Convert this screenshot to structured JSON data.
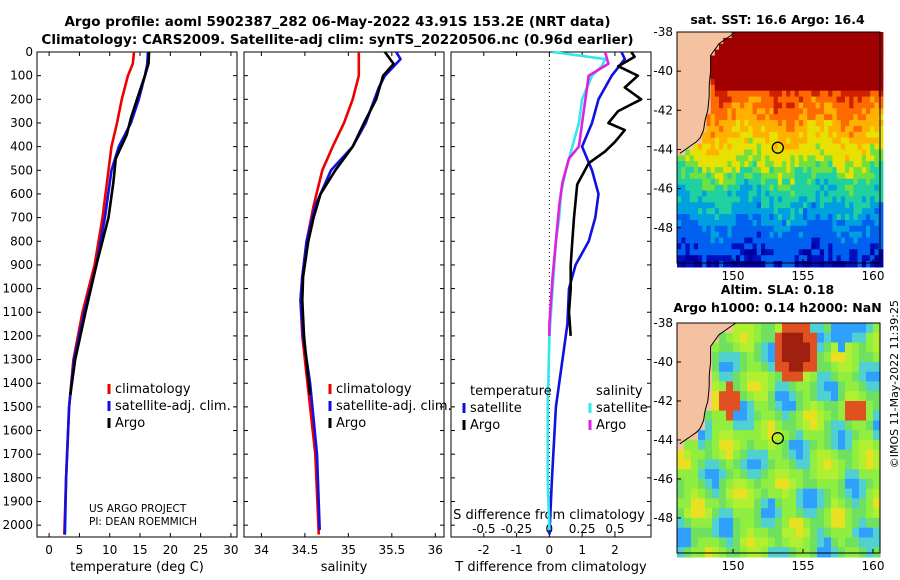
{
  "title": {
    "line1": "Argo profile: aoml 5902387_282 06-May-2022 43.91S 153.2E (NRT data)",
    "line2": "Climatology: CARS2009. Satellite-adj clim: synTS_20220506.nc (0.96d earlier)"
  },
  "colors": {
    "climatology": "#ee0000",
    "satellite": "#1010e0",
    "argo": "#000000",
    "sal_satellite": "#30e8f0",
    "sal_argo": "#e020e0"
  },
  "chart_data": [
    {
      "type": "line",
      "id": "temperature",
      "xlabel": "temperature (deg C)",
      "xlim": [
        -2,
        31
      ],
      "xticks": [
        0,
        5,
        10,
        15,
        20,
        25,
        30
      ],
      "ylim": [
        0,
        2050
      ],
      "yticks": [
        0,
        100,
        200,
        300,
        400,
        500,
        600,
        700,
        800,
        900,
        1000,
        1100,
        1200,
        1300,
        1400,
        1500,
        1600,
        1700,
        1800,
        1900,
        2000
      ],
      "legend": [
        "climatology",
        "satellite-adj. clim.",
        "Argo"
      ],
      "annotation": [
        "US ARGO PROJECT",
        "PI: DEAN ROEMMICH"
      ],
      "series": [
        {
          "name": "climatology",
          "color_key": "climatology",
          "points": [
            [
              14.0,
              0
            ],
            [
              13.8,
              50
            ],
            [
              13.0,
              100
            ],
            [
              12.0,
              200
            ],
            [
              11.2,
              300
            ],
            [
              10.3,
              400
            ],
            [
              9.8,
              500
            ],
            [
              8.8,
              700
            ],
            [
              7.5,
              900
            ],
            [
              5.5,
              1100
            ],
            [
              4.0,
              1300
            ],
            [
              3.3,
              1500
            ],
            [
              2.8,
              1800
            ],
            [
              2.5,
              2040
            ]
          ]
        },
        {
          "name": "satellite-adj. clim.",
          "color_key": "satellite",
          "points": [
            [
              16.3,
              0
            ],
            [
              16.2,
              50
            ],
            [
              15.8,
              100
            ],
            [
              14.8,
              200
            ],
            [
              13.5,
              300
            ],
            [
              11.5,
              400
            ],
            [
              10.3,
              500
            ],
            [
              9.2,
              700
            ],
            [
              7.8,
              900
            ],
            [
              5.8,
              1100
            ],
            [
              4.1,
              1300
            ],
            [
              3.3,
              1500
            ],
            [
              2.8,
              1800
            ],
            [
              2.6,
              2040
            ]
          ]
        },
        {
          "name": "Argo",
          "color_key": "argo",
          "points": [
            [
              16.5,
              0
            ],
            [
              16.4,
              50
            ],
            [
              15.8,
              100
            ],
            [
              14.5,
              200
            ],
            [
              13.5,
              280
            ],
            [
              12.8,
              350
            ],
            [
              11.0,
              450
            ],
            [
              10.6,
              550
            ],
            [
              9.8,
              700
            ],
            [
              7.8,
              900
            ],
            [
              6.0,
              1100
            ],
            [
              4.3,
              1300
            ],
            [
              3.5,
              1450
            ]
          ]
        }
      ]
    },
    {
      "type": "line",
      "id": "salinity",
      "xlabel": "salinity",
      "xlim": [
        33.8,
        36.1
      ],
      "xticks": [
        34,
        34.5,
        35,
        35.5,
        36
      ],
      "ylim": [
        0,
        2050
      ],
      "legend": [
        "climatology",
        "satellite-adj. clim.",
        "Argo"
      ],
      "series": [
        {
          "name": "climatology",
          "color_key": "climatology",
          "points": [
            [
              35.12,
              0
            ],
            [
              35.12,
              50
            ],
            [
              35.12,
              100
            ],
            [
              35.05,
              200
            ],
            [
              34.95,
              300
            ],
            [
              34.82,
              400
            ],
            [
              34.7,
              500
            ],
            [
              34.6,
              650
            ],
            [
              34.52,
              800
            ],
            [
              34.47,
              950
            ],
            [
              34.45,
              1050
            ],
            [
              34.47,
              1200
            ],
            [
              34.53,
              1400
            ],
            [
              34.62,
              1700
            ],
            [
              34.66,
              2040
            ]
          ]
        },
        {
          "name": "satellite-adj. clim.",
          "color_key": "satellite",
          "points": [
            [
              35.55,
              0
            ],
            [
              35.6,
              30
            ],
            [
              35.55,
              50
            ],
            [
              35.42,
              100
            ],
            [
              35.35,
              150
            ],
            [
              35.2,
              300
            ],
            [
              35.05,
              400
            ],
            [
              34.8,
              500
            ],
            [
              34.62,
              650
            ],
            [
              34.52,
              800
            ],
            [
              34.47,
              950
            ],
            [
              34.45,
              1050
            ],
            [
              34.48,
              1200
            ],
            [
              34.56,
              1400
            ],
            [
              34.64,
              1700
            ],
            [
              34.67,
              2020
            ]
          ]
        },
        {
          "name": "Argo",
          "color_key": "argo",
          "points": [
            [
              35.42,
              0
            ],
            [
              35.48,
              30
            ],
            [
              35.52,
              50
            ],
            [
              35.4,
              100
            ],
            [
              35.32,
              200
            ],
            [
              35.18,
              300
            ],
            [
              35.05,
              400
            ],
            [
              34.85,
              500
            ],
            [
              34.68,
              600
            ],
            [
              34.6,
              700
            ],
            [
              34.54,
              800
            ],
            [
              34.48,
              950
            ],
            [
              34.47,
              1050
            ],
            [
              34.49,
              1200
            ],
            [
              34.53,
              1350
            ],
            [
              34.56,
              1450
            ]
          ]
        }
      ]
    },
    {
      "type": "line",
      "id": "difference",
      "xlabel": "T difference from climatology",
      "top_label": "S difference from climatology",
      "xlim": [
        -3,
        3.1
      ],
      "xticks": [
        -2,
        -1,
        0,
        1,
        2
      ],
      "sticks_labels": [
        "-0.5",
        "-0.25",
        "0",
        "0.25",
        "0.5"
      ],
      "legend_left_title": "temperature",
      "legend_left": [
        "satellite",
        "Argo"
      ],
      "legend_right_title": "salinity",
      "legend_right": [
        "satellite",
        "Argo"
      ],
      "series": [
        {
          "name": "T satellite",
          "color_key": "satellite",
          "points": [
            [
              2.2,
              0
            ],
            [
              2.3,
              30
            ],
            [
              1.9,
              100
            ],
            [
              1.5,
              200
            ],
            [
              1.3,
              300
            ],
            [
              1.0,
              400
            ],
            [
              1.3,
              500
            ],
            [
              1.5,
              600
            ],
            [
              1.4,
              700
            ],
            [
              1.2,
              800
            ],
            [
              0.8,
              900
            ],
            [
              0.6,
              1000
            ],
            [
              0.55,
              1150
            ],
            [
              0.4,
              1300
            ],
            [
              0.2,
              1500
            ],
            [
              0.08,
              1800
            ],
            [
              0.0,
              2040
            ]
          ]
        },
        {
          "name": "T Argo",
          "color_key": "argo",
          "points": [
            [
              2.5,
              0
            ],
            [
              2.6,
              20
            ],
            [
              2.1,
              60
            ],
            [
              2.7,
              100
            ],
            [
              2.3,
              150
            ],
            [
              2.8,
              200
            ],
            [
              2.1,
              250
            ],
            [
              1.8,
              300
            ],
            [
              2.3,
              330
            ],
            [
              2.0,
              380
            ],
            [
              1.7,
              420
            ],
            [
              1.2,
              470
            ],
            [
              0.85,
              560
            ],
            [
              0.75,
              700
            ],
            [
              0.7,
              800
            ],
            [
              0.65,
              900
            ],
            [
              0.65,
              1000
            ],
            [
              0.6,
              1100
            ],
            [
              0.65,
              1200
            ]
          ]
        },
        {
          "name": "S satellite",
          "color_key": "sal_satellite",
          "points": [
            [
              0.1,
              0
            ],
            [
              1.7,
              30
            ],
            [
              1.6,
              60
            ],
            [
              1.3,
              100
            ],
            [
              1.0,
              200
            ],
            [
              0.9,
              300
            ],
            [
              0.7,
              400
            ],
            [
              0.5,
              500
            ],
            [
              0.35,
              600
            ],
            [
              0.3,
              700
            ],
            [
              0.2,
              800
            ],
            [
              0.15,
              900
            ],
            [
              0.1,
              1000
            ],
            [
              0.05,
              1100
            ],
            [
              0.0,
              1200
            ],
            [
              -0.05,
              1500
            ],
            [
              -0.05,
              1800
            ],
            [
              0.0,
              2020
            ]
          ]
        },
        {
          "name": "S Argo",
          "color_key": "sal_argo",
          "points": [
            [
              1.7,
              0
            ],
            [
              1.8,
              50
            ],
            [
              1.2,
              100
            ],
            [
              1.1,
              200
            ],
            [
              1.0,
              300
            ],
            [
              0.9,
              400
            ],
            [
              0.6,
              450
            ],
            [
              0.4,
              550
            ],
            [
              0.3,
              650
            ],
            [
              0.2,
              800
            ],
            [
              0.1,
              950
            ],
            [
              0.05,
              1050
            ],
            [
              0.0,
              1150
            ],
            [
              0.0,
              1200
            ]
          ]
        }
      ]
    },
    {
      "type": "heatmap",
      "id": "sst_map",
      "title": "sat. SST: 16.6 Argo: 16.4",
      "xlim": [
        146,
        160.5
      ],
      "ylim": [
        -49.8,
        -38
      ],
      "xticks": [
        150,
        155,
        160
      ],
      "yticks": [
        -38,
        -40,
        -42,
        -44,
        -46,
        -48
      ],
      "marker": [
        153.2,
        -43.91
      ]
    },
    {
      "type": "heatmap",
      "id": "sla_map",
      "title_line1": "Altim. SLA: 0.18",
      "title_line2": "Argo h1000: 0.14 h2000: NaN",
      "xlim": [
        146,
        160.5
      ],
      "ylim": [
        -49.8,
        -38
      ],
      "xticks": [
        150,
        155,
        160
      ],
      "yticks": [
        -38,
        -40,
        -42,
        -44,
        -46,
        -48
      ],
      "marker": [
        153.2,
        -43.91
      ]
    }
  ],
  "footer": {
    "stamp": "©IMOS 11-May-2022 11:39:25"
  }
}
